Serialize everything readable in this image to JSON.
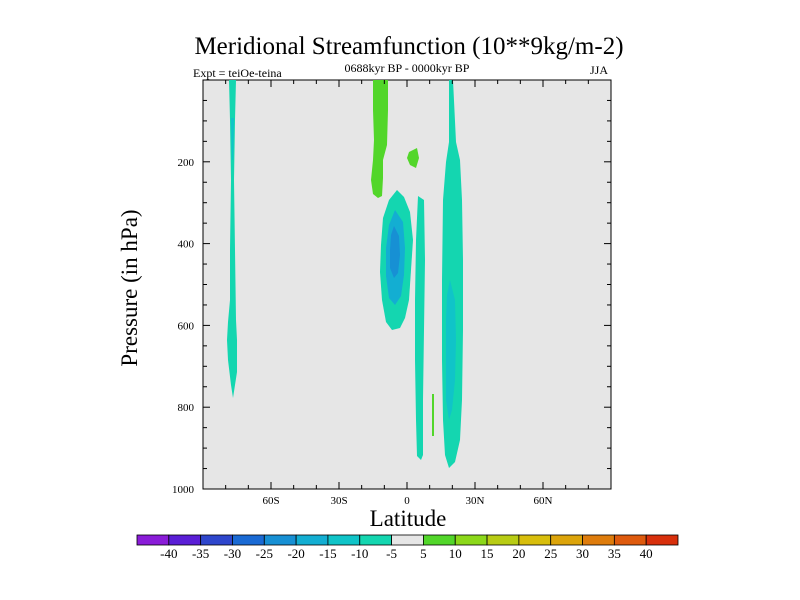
{
  "chart_data": {
    "type": "contour",
    "title": "Meridional Streamfunction (10**9kg/m-2)",
    "experiment": "Expt = teiOe-teina",
    "period": "0688kyr BP - 0000kyr BP",
    "season": "JJA",
    "xlabel": "Latitude",
    "ylabel": "Pressure (in hPa)",
    "xlim": [
      -90,
      90
    ],
    "ylim": [
      1000,
      0
    ],
    "x_ticks": [
      {
        "value": -60,
        "label": "60S"
      },
      {
        "value": -30,
        "label": "30S"
      },
      {
        "value": 0,
        "label": "0"
      },
      {
        "value": 30,
        "label": "30N"
      },
      {
        "value": 60,
        "label": "60N"
      }
    ],
    "y_ticks": [
      {
        "value": 200,
        "label": "200"
      },
      {
        "value": 400,
        "label": "400"
      },
      {
        "value": 600,
        "label": "600"
      },
      {
        "value": 800,
        "label": "800"
      },
      {
        "value": 1000,
        "label": "1000"
      }
    ],
    "colorbar": {
      "levels": [
        "-40",
        "-35",
        "-30",
        "-25",
        "-20",
        "-15",
        "-10",
        "-5",
        "5",
        "10",
        "15",
        "20",
        "25",
        "30",
        "35",
        "40"
      ],
      "colors": [
        "#8a1cd8",
        "#5a1ed6",
        "#2e46cc",
        "#1a6ad4",
        "#1790d4",
        "#13aed2",
        "#10c4c8",
        "#14d6b0",
        "#e6e6e6",
        "#52d62a",
        "#8cd81a",
        "#b8cc14",
        "#d8be0c",
        "#dca40a",
        "#de7c0c",
        "#de5a0e",
        "#d8300c"
      ]
    },
    "features": [
      {
        "name": "Southern midlatitude negative cell",
        "class": "-10 to -5",
        "lat": [
          -77,
          -73
        ],
        "p": [
          0,
          790
        ]
      },
      {
        "name": "Subtropical positive cell",
        "class": "5 to 10",
        "lat": [
          -16,
          -10
        ],
        "p": [
          0,
          290
        ]
      },
      {
        "name": "Equatorial positive cell",
        "class": "5 to 10",
        "lat": [
          0,
          3
        ],
        "p": [
          160,
          210
        ]
      },
      {
        "name": "Southern Hadley negative cell",
        "class": "-25 to -5",
        "lat": [
          -12,
          2
        ],
        "p": [
          220,
          650
        ]
      },
      {
        "name": "Equatorial narrow negative cell",
        "class": "-10 to -5",
        "lat": [
          2,
          5
        ],
        "p": [
          290,
          930
        ]
      },
      {
        "name": "Northern tropical negative cell",
        "class": "-15 to -5",
        "lat": [
          13,
          23
        ],
        "p": [
          0,
          950
        ]
      },
      {
        "name": "Near-surface positive sliver",
        "class": "5 to 10",
        "lat": [
          10,
          11
        ],
        "p": [
          760,
          870
        ]
      }
    ]
  }
}
